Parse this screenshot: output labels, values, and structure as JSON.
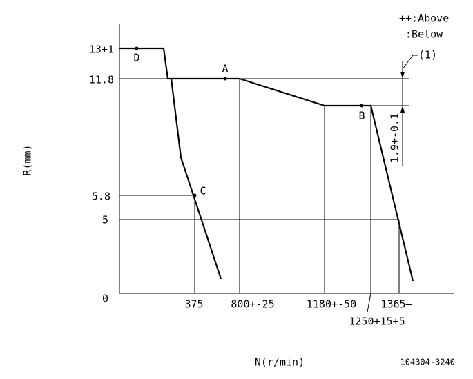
{
  "legend": {
    "above": "++:Above",
    "below": "—:Below"
  },
  "y_axis": {
    "label": "R(mm)",
    "ticks": [
      "13+1",
      "11.8",
      "5.8",
      "5",
      "0"
    ]
  },
  "x_axis": {
    "label": "N(r/min)",
    "ticks": [
      "375",
      "800+-25",
      "1180+-50",
      "1365—",
      "1250+15+5"
    ]
  },
  "points": [
    "D",
    "A",
    "B",
    "C"
  ],
  "dimension": {
    "label": "1.9+-0.1",
    "callout": "(1)"
  },
  "drawing_number": "104304-3240"
}
